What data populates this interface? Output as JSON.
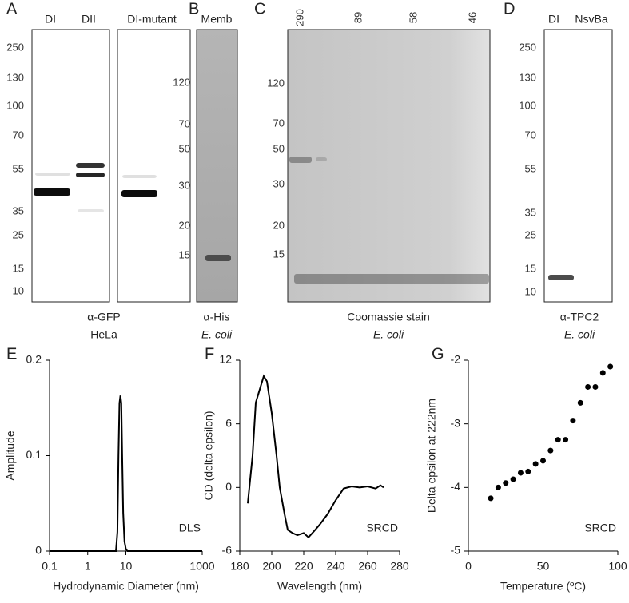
{
  "gels": [
    {
      "label": "A",
      "lanes": [
        "DI",
        "DII",
        "DI-mutant"
      ],
      "markers": [
        250,
        130,
        100,
        70,
        55,
        35,
        25,
        15,
        10
      ],
      "caption": [
        "α-GFP",
        "HeLa"
      ]
    },
    {
      "label": "B",
      "lanes": [
        "Memb"
      ],
      "markers": [
        120,
        70,
        50,
        30,
        20,
        15
      ],
      "caption": [
        "α-His",
        "E. coli"
      ]
    },
    {
      "label": "C",
      "lanes": [
        "290",
        "89",
        "58",
        "46"
      ],
      "markers": [
        120,
        70,
        50,
        30,
        20,
        15
      ],
      "caption": [
        "Coomassie stain",
        "E.  coli"
      ]
    },
    {
      "label": "D",
      "lanes": [
        "DI",
        "NsvBa"
      ],
      "markers": [
        250,
        130,
        100,
        70,
        55,
        35,
        25,
        15,
        10
      ],
      "caption": [
        "α-TPC2",
        "E. coli"
      ]
    }
  ],
  "chart_data": [
    {
      "type": "line",
      "panel": "E",
      "xlabel": "Hydrodynamic Diameter (nm)",
      "ylabel": "Amplitude",
      "annotation": "DLS",
      "color": "#000000",
      "xscale": "log",
      "x": [
        0.1,
        5.5,
        6.0,
        6.4,
        6.8,
        7.2,
        7.6,
        8.0,
        8.5,
        9.2,
        10,
        11,
        1000
      ],
      "values": [
        0,
        0,
        0.02,
        0.1,
        0.155,
        0.163,
        0.155,
        0.1,
        0.04,
        0.01,
        0.002,
        0,
        0
      ],
      "xlim": [
        0.1,
        1000
      ],
      "xticks": [
        0.1,
        1,
        10,
        1000
      ],
      "ylim": [
        0,
        0.2
      ],
      "yticks": [
        0,
        0.1,
        0.2
      ]
    },
    {
      "type": "line",
      "panel": "F",
      "xlabel": "Wavelength (nm)",
      "ylabel": "CD (delta epsilon)",
      "annotation": "SRCD",
      "color": "#000000",
      "x": [
        185,
        188,
        190,
        193,
        195,
        197,
        200,
        203,
        205,
        208,
        210,
        213,
        216,
        220,
        223,
        226,
        230,
        235,
        240,
        245,
        250,
        255,
        260,
        265,
        268,
        270
      ],
      "values": [
        -1.5,
        3,
        8,
        9.5,
        10.5,
        10,
        7,
        3,
        0,
        -2.5,
        -4,
        -4.3,
        -4.5,
        -4.3,
        -4.7,
        -4.2,
        -3.5,
        -2.5,
        -1.2,
        -0.1,
        0.1,
        0,
        0.1,
        -0.1,
        0.2,
        0
      ],
      "xlim": [
        180,
        280
      ],
      "xticks": [
        180,
        200,
        220,
        240,
        260,
        280
      ],
      "ylim": [
        -6,
        12
      ],
      "yticks": [
        -6,
        0,
        6,
        12
      ]
    },
    {
      "type": "scatter",
      "panel": "G",
      "xlabel": "Temperature (ºC)",
      "ylabel": "Delta epsilon at 222nm",
      "annotation": "SRCD",
      "color": "#000000",
      "x": [
        15,
        20,
        25,
        30,
        35,
        40,
        45,
        50,
        55,
        60,
        65,
        70,
        75,
        80,
        85,
        90,
        95
      ],
      "values": [
        -4.17,
        -4.0,
        -3.93,
        -3.87,
        -3.77,
        -3.75,
        -3.63,
        -3.58,
        -3.42,
        -3.25,
        -3.25,
        -2.95,
        -2.67,
        -2.42,
        -2.42,
        -2.2,
        -2.1
      ],
      "xlim": [
        0,
        100
      ],
      "xticks": [
        0,
        50,
        100
      ],
      "ylim": [
        -5,
        -2
      ],
      "yticks": [
        -5,
        -4,
        -3,
        -2
      ]
    }
  ]
}
